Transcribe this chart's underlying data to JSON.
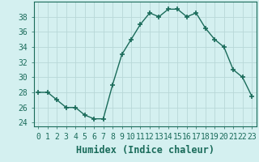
{
  "x": [
    0,
    1,
    2,
    3,
    4,
    5,
    6,
    7,
    8,
    9,
    10,
    11,
    12,
    13,
    14,
    15,
    16,
    17,
    18,
    19,
    20,
    21,
    22,
    23
  ],
  "y": [
    28,
    28,
    27,
    26,
    26,
    25,
    24.5,
    24.5,
    29,
    33,
    35,
    37,
    38.5,
    38,
    39,
    39,
    38,
    38.5,
    36.5,
    35,
    34,
    31,
    30,
    27.5
  ],
  "line_color": "#1a6b5a",
  "marker": "+",
  "marker_size": 4,
  "bg_color": "#d4f0f0",
  "grid_color": "#b8d8d8",
  "xlabel": "Humidex (Indice chaleur)",
  "ylim": [
    23.5,
    40
  ],
  "yticks": [
    24,
    26,
    28,
    30,
    32,
    34,
    36,
    38
  ],
  "xlim": [
    -0.5,
    23.5
  ],
  "tick_fontsize": 7,
  "xlabel_fontsize": 8.5
}
